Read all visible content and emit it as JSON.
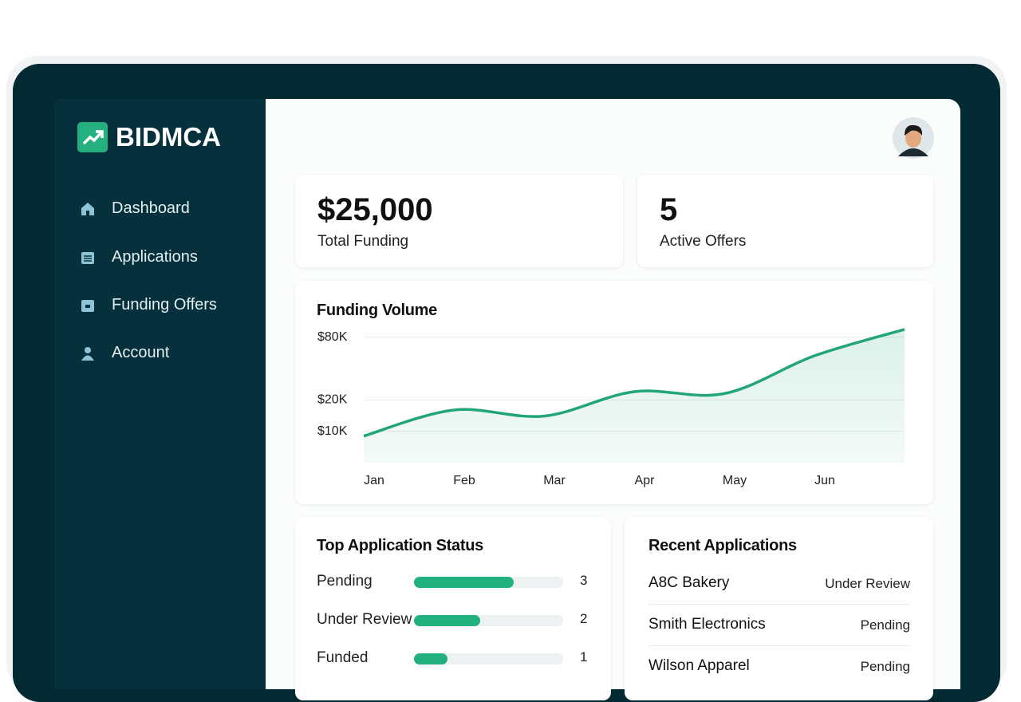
{
  "brand": "BIDMCA",
  "nav": [
    "Dashboard",
    "Applications",
    "Funding Offers",
    "Account"
  ],
  "stats": [
    {
      "value": "$25,000",
      "label": "Total Funding"
    },
    {
      "value": "5",
      "label": "Active Offers"
    }
  ],
  "chart_data": {
    "type": "line",
    "title": "Funding Volume",
    "categories": [
      "Jan",
      "Feb",
      "Mar",
      "Apr",
      "May",
      "Jun",
      null
    ],
    "values": [
      9000,
      16000,
      14000,
      24000,
      23000,
      53000,
      95000
    ],
    "color": "#22a57a",
    "log": true,
    "grid": true,
    "ylim": [
      5000,
      100000
    ],
    "yticks": [
      {
        "value": 10000,
        "label": "$10K"
      },
      {
        "value": 20000,
        "label": "$20K"
      },
      {
        "value": 80000,
        "label": "$80K"
      }
    ]
  },
  "status": {
    "title": "Top Application Status",
    "items": [
      {
        "label": "Pending",
        "count": 3
      },
      {
        "label": "Under Review",
        "count": 2
      },
      {
        "label": "Funded",
        "count": 1
      }
    ]
  },
  "recent": {
    "title": "Recent Applications",
    "rows": [
      {
        "name": "A8C Bakery",
        "status": "Under Review"
      },
      {
        "name": "Smith Electronics",
        "status": "Pending"
      },
      {
        "name": "Wilson Apparel",
        "status": "Pending"
      }
    ]
  }
}
